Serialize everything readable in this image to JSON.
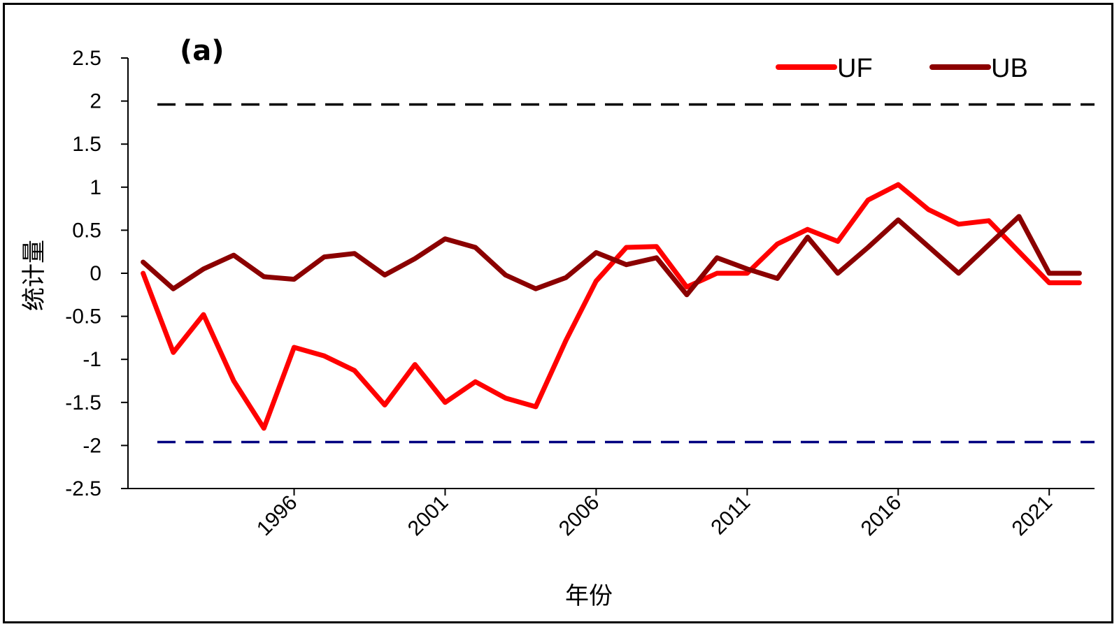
{
  "chart_data": {
    "type": "line",
    "panel_label": "(a)",
    "xlabel": "年份",
    "ylabel": "统计量",
    "ylim": [
      -2.5,
      2.5
    ],
    "yticks": [
      2.5,
      2,
      1.5,
      1,
      0.5,
      0,
      -0.5,
      -1,
      -1.5,
      -2,
      -2.5
    ],
    "ytick_labels": [
      "2.5",
      "2",
      "1.5",
      "1",
      "0.5",
      "0",
      "-0.5",
      "-1",
      "-1.5",
      "-2",
      "-2.5"
    ],
    "xlim": [
      1990.5,
      2022.5
    ],
    "xticks": [
      1996,
      2001,
      2006,
      2011,
      2016,
      2021
    ],
    "xtick_labels": [
      "1996",
      "2001",
      "2006",
      "2011",
      "2016",
      "2021"
    ],
    "x": [
      1991,
      1992,
      1993,
      1994,
      1995,
      1996,
      1997,
      1998,
      1999,
      2000,
      2001,
      2002,
      2003,
      2004,
      2005,
      2006,
      2007,
      2008,
      2009,
      2010,
      2011,
      2012,
      2013,
      2014,
      2015,
      2016,
      2017,
      2018,
      2019,
      2020,
      2021,
      2022
    ],
    "series": [
      {
        "name": "UF",
        "color": "#ff0000",
        "values": [
          0.0,
          -0.92,
          -0.48,
          -1.25,
          -1.8,
          -0.86,
          -0.96,
          -1.13,
          -1.53,
          -1.06,
          -1.5,
          -1.26,
          -1.45,
          -1.55,
          -0.78,
          -0.09,
          0.3,
          0.31,
          -0.16,
          0.0,
          0.0,
          0.34,
          0.51,
          0.37,
          0.85,
          1.03,
          0.74,
          0.57,
          0.61,
          0.25,
          -0.11,
          -0.11
        ]
      },
      {
        "name": "UB",
        "color": "#8b0000",
        "values": [
          0.13,
          -0.18,
          0.05,
          0.21,
          -0.04,
          -0.07,
          0.19,
          0.23,
          -0.02,
          0.17,
          0.4,
          0.3,
          -0.02,
          -0.18,
          -0.05,
          0.24,
          0.1,
          0.18,
          -0.25,
          0.18,
          0.05,
          -0.06,
          0.42,
          0.0,
          0.3,
          0.62,
          0.31,
          0.0,
          0.33,
          0.66,
          0.0,
          0.0
        ]
      }
    ],
    "reference_lines": [
      {
        "value": 1.96,
        "color": "#000000",
        "style": "dashed"
      },
      {
        "value": -1.96,
        "color": "#000080",
        "style": "dashed"
      }
    ],
    "legend_position": "top-right",
    "grid": false
  }
}
